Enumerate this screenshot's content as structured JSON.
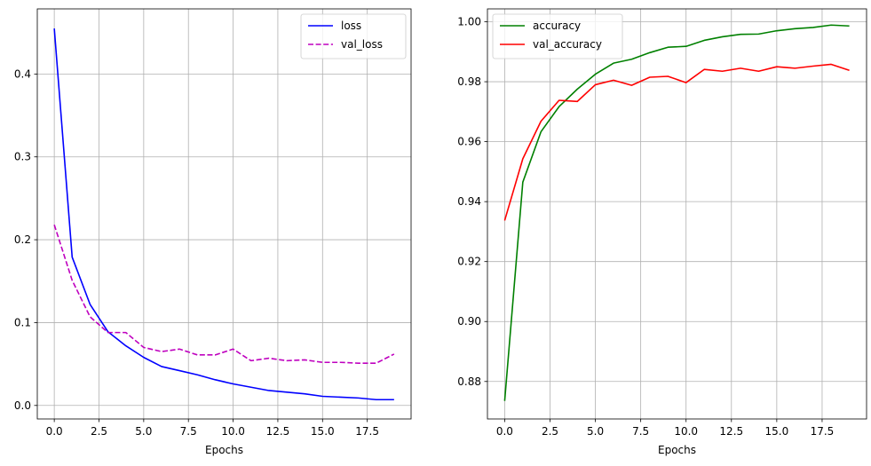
{
  "chart_data": [
    {
      "type": "line",
      "title": "",
      "xlabel": "Epochs",
      "ylabel": "",
      "xlim": [
        -0.95,
        19.95
      ],
      "ylim": [
        -0.0163,
        0.4786
      ],
      "xticks": [
        0.0,
        2.5,
        5.0,
        7.5,
        10.0,
        12.5,
        15.0,
        17.5
      ],
      "xtick_labels": [
        "0.0",
        "2.5",
        "5.0",
        "7.5",
        "10.0",
        "12.5",
        "15.0",
        "17.5"
      ],
      "yticks": [
        0.0,
        0.1,
        0.2,
        0.3,
        0.4
      ],
      "ytick_labels": [
        "0.0",
        "0.1",
        "0.2",
        "0.3",
        "0.4"
      ],
      "grid": true,
      "legend_position": "top-right",
      "x": [
        0,
        1,
        2,
        3,
        4,
        5,
        6,
        7,
        8,
        9,
        10,
        11,
        12,
        13,
        14,
        15,
        16,
        17,
        18,
        19
      ],
      "series": [
        {
          "name": "loss",
          "color": "#0000ff",
          "style": "solid",
          "values": [
            0.455,
            0.179,
            0.122,
            0.089,
            0.072,
            0.058,
            0.047,
            0.042,
            0.037,
            0.031,
            0.026,
            0.022,
            0.018,
            0.016,
            0.014,
            0.011,
            0.01,
            0.009,
            0.007,
            0.007
          ]
        },
        {
          "name": "val_loss",
          "color": "#bf00bf",
          "style": "dashed",
          "values": [
            0.218,
            0.151,
            0.107,
            0.088,
            0.088,
            0.07,
            0.065,
            0.068,
            0.061,
            0.061,
            0.068,
            0.054,
            0.057,
            0.054,
            0.055,
            0.052,
            0.052,
            0.051,
            0.051,
            0.062
          ]
        }
      ]
    },
    {
      "type": "line",
      "title": "",
      "xlabel": "Epochs",
      "ylabel": "",
      "xlim": [
        -0.95,
        19.95
      ],
      "ylim": [
        0.8675,
        1.0043
      ],
      "xticks": [
        0.0,
        2.5,
        5.0,
        7.5,
        10.0,
        12.5,
        15.0,
        17.5
      ],
      "xtick_labels": [
        "0.0",
        "2.5",
        "5.0",
        "7.5",
        "10.0",
        "12.5",
        "15.0",
        "17.5"
      ],
      "yticks": [
        0.88,
        0.9,
        0.92,
        0.94,
        0.96,
        0.98,
        1.0
      ],
      "ytick_labels": [
        "0.88",
        "0.90",
        "0.92",
        "0.94",
        "0.96",
        "0.98",
        "1.00"
      ],
      "grid": true,
      "legend_position": "top-left",
      "x": [
        0,
        1,
        2,
        3,
        4,
        5,
        6,
        7,
        8,
        9,
        10,
        11,
        12,
        13,
        14,
        15,
        16,
        17,
        18,
        19
      ],
      "series": [
        {
          "name": "accuracy",
          "color": "#008000",
          "style": "solid",
          "values": [
            0.8735,
            0.9465,
            0.9633,
            0.9717,
            0.9775,
            0.9825,
            0.9862,
            0.9875,
            0.9897,
            0.9915,
            0.9918,
            0.9938,
            0.995,
            0.9958,
            0.9959,
            0.997,
            0.9977,
            0.9981,
            0.9989,
            0.9986
          ]
        },
        {
          "name": "val_accuracy",
          "color": "#ff0000",
          "style": "solid",
          "values": [
            0.9337,
            0.9543,
            0.9668,
            0.9738,
            0.9734,
            0.979,
            0.9805,
            0.9788,
            0.9815,
            0.9818,
            0.9797,
            0.9841,
            0.9835,
            0.9845,
            0.9835,
            0.985,
            0.9845,
            0.9852,
            0.9858,
            0.9838
          ]
        }
      ]
    }
  ]
}
